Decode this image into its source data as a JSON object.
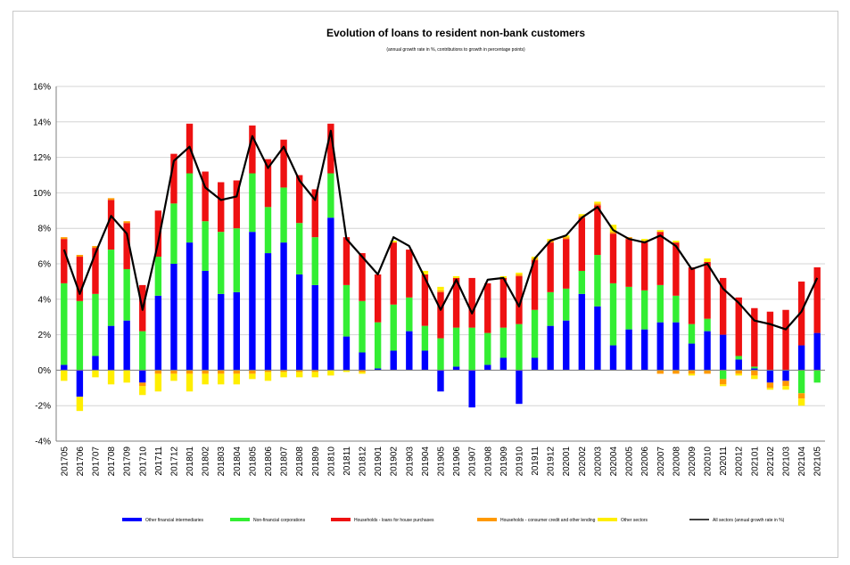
{
  "chart_data": {
    "type": "bar",
    "stacked": true,
    "title": "Evolution of loans to resident non-bank customers",
    "subtitle": "(annual growth rate in %, contributions to growth in percentage points)",
    "ylim": [
      -4,
      16
    ],
    "yticks": [
      -4,
      -2,
      0,
      2,
      4,
      6,
      8,
      10,
      12,
      14,
      16
    ],
    "ytick_labels": [
      "-4%",
      "-2%",
      "0%",
      "2%",
      "4%",
      "6%",
      "8%",
      "10%",
      "12%",
      "14%",
      "16%"
    ],
    "grid": true,
    "legend_position": "bottom",
    "categories": [
      "201705",
      "201706",
      "201707",
      "201708",
      "201709",
      "201710",
      "201711",
      "201712",
      "201801",
      "201802",
      "201803",
      "201804",
      "201805",
      "201806",
      "201807",
      "201808",
      "201809",
      "201810",
      "201811",
      "201812",
      "201901",
      "201902",
      "201903",
      "201904",
      "201905",
      "201906",
      "201907",
      "201908",
      "201909",
      "201910",
      "201911",
      "201912",
      "202001",
      "202002",
      "202003",
      "202004",
      "202005",
      "202006",
      "202007",
      "202008",
      "202009",
      "202010",
      "202011",
      "202012",
      "202101",
      "202102",
      "202103",
      "202104",
      "202105"
    ],
    "series": [
      {
        "name": "Other financial intermediaries",
        "color": "#0000ff",
        "values": [
          0.3,
          -1.5,
          0.8,
          2.5,
          2.8,
          -0.7,
          4.2,
          6.0,
          7.2,
          5.6,
          4.3,
          4.4,
          7.8,
          6.6,
          7.2,
          5.4,
          4.8,
          8.6,
          1.9,
          1.0,
          0.1,
          1.1,
          2.2,
          1.1,
          -1.2,
          0.2,
          -2.1,
          0.3,
          0.7,
          -1.9,
          0.7,
          2.5,
          2.8,
          4.3,
          3.6,
          1.4,
          2.3,
          2.3,
          2.7,
          2.7,
          1.5,
          2.2,
          2.0,
          0.6,
          0.1,
          -0.7,
          -0.6,
          1.4,
          2.1
        ]
      },
      {
        "name": "Non-financial corporations",
        "color": "#33ee33",
        "values": [
          4.6,
          3.9,
          3.5,
          4.3,
          2.9,
          2.2,
          2.2,
          3.4,
          3.9,
          2.8,
          3.5,
          3.6,
          3.3,
          2.6,
          3.1,
          2.9,
          2.7,
          2.5,
          2.9,
          2.9,
          2.6,
          2.6,
          1.9,
          1.4,
          1.8,
          2.2,
          2.4,
          1.8,
          1.7,
          2.6,
          2.7,
          1.9,
          1.8,
          1.3,
          2.9,
          3.5,
          2.4,
          2.2,
          2.1,
          1.5,
          1.1,
          0.7,
          -0.5,
          0.2,
          0.1,
          0.0,
          0.0,
          -1.3,
          -0.7
        ]
      },
      {
        "name": "Households - loans for house purchases",
        "color": "#ee1111",
        "values": [
          2.5,
          2.5,
          2.6,
          2.8,
          2.6,
          2.6,
          2.6,
          2.8,
          2.8,
          2.8,
          2.8,
          2.7,
          2.7,
          2.7,
          2.7,
          2.7,
          2.7,
          2.8,
          2.7,
          2.7,
          2.7,
          3.5,
          2.7,
          2.9,
          2.6,
          2.8,
          2.8,
          2.8,
          2.8,
          2.7,
          2.8,
          2.8,
          2.8,
          3.0,
          2.8,
          2.8,
          2.7,
          2.7,
          3.0,
          3.0,
          3.2,
          3.2,
          3.2,
          3.3,
          3.3,
          3.3,
          3.4,
          3.6,
          3.7
        ]
      },
      {
        "name": "Households - consumer credit and other lending",
        "color": "#ff9900",
        "values": [
          0.1,
          0.1,
          0.1,
          0.1,
          0.1,
          -0.2,
          -0.2,
          -0.2,
          -0.2,
          -0.2,
          -0.2,
          -0.2,
          -0.2,
          -0.1,
          -0.1,
          -0.1,
          -0.1,
          0.0,
          0.0,
          -0.1,
          0.0,
          0.0,
          0.0,
          0.0,
          0.1,
          0.0,
          0.0,
          0.0,
          0.0,
          0.1,
          0.1,
          0.1,
          0.1,
          0.1,
          0.1,
          0.1,
          0.1,
          0.1,
          -0.2,
          -0.2,
          -0.2,
          -0.2,
          -0.3,
          -0.2,
          -0.3,
          -0.3,
          -0.3,
          -0.3,
          0.0
        ]
      },
      {
        "name": "Other sectors",
        "color": "#ffee00",
        "values": [
          -0.6,
          -0.8,
          -0.4,
          -0.8,
          -0.7,
          -0.5,
          -1.0,
          -0.4,
          -1.0,
          -0.6,
          -0.6,
          -0.6,
          -0.3,
          -0.5,
          -0.3,
          -0.3,
          -0.3,
          -0.3,
          -0.1,
          -0.1,
          0.0,
          0.1,
          0.0,
          0.2,
          0.2,
          0.1,
          0.0,
          0.0,
          0.1,
          0.1,
          0.1,
          0.1,
          0.1,
          0.1,
          0.1,
          0.4,
          0.0,
          0.1,
          0.1,
          0.1,
          -0.1,
          0.2,
          -0.1,
          -0.1,
          -0.2,
          -0.1,
          -0.2,
          -0.4,
          0.0
        ]
      },
      {
        "name": "All sectors (annual growth rate in %)",
        "color": "#000000",
        "type": "line",
        "values": [
          6.8,
          4.3,
          6.6,
          8.7,
          7.7,
          3.4,
          7.2,
          11.8,
          12.6,
          10.3,
          9.6,
          9.8,
          13.2,
          11.4,
          12.6,
          10.7,
          9.6,
          13.5,
          7.4,
          6.4,
          5.4,
          7.5,
          7.0,
          5.2,
          3.4,
          5.1,
          3.2,
          5.1,
          5.2,
          3.6,
          6.3,
          7.3,
          7.6,
          8.6,
          9.2,
          7.9,
          7.4,
          7.2,
          7.6,
          7.0,
          5.7,
          6.0,
          4.6,
          3.8,
          2.8,
          2.6,
          2.3,
          3.3,
          5.2
        ]
      }
    ]
  }
}
